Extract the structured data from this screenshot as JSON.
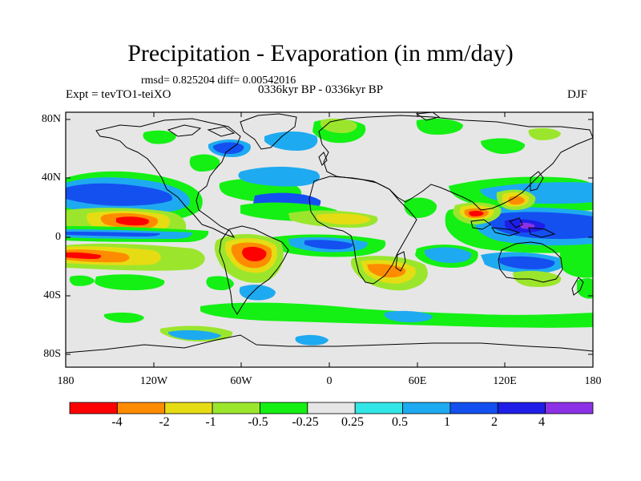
{
  "title": "Precipitation - Evaporation (in mm/day)",
  "stats": "rmsd= 0.825204 diff= 0.00542016",
  "experiment": "Expt = tevTO1-teiXO",
  "period": "0336kyr BP - 0336kyr BP",
  "season": "DJF",
  "map": {
    "projection": "cylindrical equidistant",
    "lon_range": [
      -180,
      180
    ],
    "lat_range": [
      -90,
      90
    ],
    "lat_tick_labels": [
      "80N",
      "40N",
      "0",
      "40S",
      "80S"
    ],
    "lon_tick_labels": [
      "180",
      "120W",
      "60W",
      "0",
      "60E",
      "120E",
      "180"
    ],
    "background_color": "#e6e6e6",
    "coastline_color": "#000000"
  },
  "colorbar": {
    "colors": [
      "#ff0000",
      "#ff8c00",
      "#e6dc14",
      "#9be62d",
      "#14f014",
      "#e6e6e6",
      "#32e6e6",
      "#1eaaf0",
      "#1450f0",
      "#1e1ee6",
      "#8c32e6"
    ],
    "labels": [
      "-4",
      "-2",
      "-1",
      "-0.5",
      "-0.25",
      "0.25",
      "0.5",
      "1",
      "2",
      "4"
    ]
  }
}
